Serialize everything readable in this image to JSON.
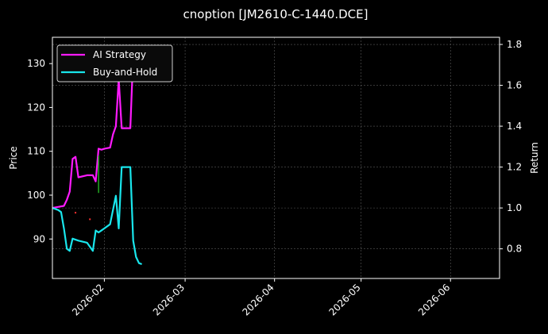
{
  "chart_data": {
    "type": "line",
    "title": "cnoption [JM2610-C-1440.DCE]",
    "x_axis": {
      "type": "date",
      "ticks": [
        "2026-02",
        "2026-03",
        "2026-04",
        "2026-05",
        "2026-06"
      ],
      "tick_dates": [
        "2026-02-01",
        "2026-03-01",
        "2026-04-01",
        "2026-05-01",
        "2026-06-01"
      ],
      "range": [
        "2026-01-14",
        "2026-06-18"
      ]
    },
    "y_left": {
      "label": "Price",
      "ticks": [
        90,
        100,
        110,
        120,
        130
      ],
      "range": [
        81.0,
        136.0
      ]
    },
    "y_right": {
      "label": "Return",
      "ticks": [
        0.8,
        1.0,
        1.2,
        1.4,
        1.6,
        1.8
      ],
      "range": [
        0.655,
        1.835
      ]
    },
    "grid": true,
    "legend": {
      "placement": "upper-left",
      "entries": [
        "AI Strategy",
        "Buy-and-Hold"
      ]
    },
    "series": [
      {
        "name": "AI Strategy",
        "axis": "right",
        "color": "#ff1aff",
        "points": [
          [
            "2026-01-14",
            1.0
          ],
          [
            "2026-01-16",
            1.005
          ],
          [
            "2026-01-18",
            1.01
          ],
          [
            "2026-01-19",
            1.04
          ],
          [
            "2026-01-20",
            1.08
          ],
          [
            "2026-01-21",
            1.24
          ],
          [
            "2026-01-22",
            1.25
          ],
          [
            "2026-01-23",
            1.15
          ],
          [
            "2026-01-26",
            1.16
          ],
          [
            "2026-01-28",
            1.16
          ],
          [
            "2026-01-29",
            1.13
          ],
          [
            "2026-01-30",
            1.29
          ],
          [
            "2026-01-31",
            1.285
          ],
          [
            "2026-02-01",
            1.29
          ],
          [
            "2026-02-03",
            1.295
          ],
          [
            "2026-02-04",
            1.36
          ],
          [
            "2026-02-05",
            1.4
          ],
          [
            "2026-02-06",
            1.63
          ],
          [
            "2026-02-07",
            1.39
          ],
          [
            "2026-02-09",
            1.39
          ],
          [
            "2026-02-10",
            1.39
          ],
          [
            "2026-02-11",
            1.75
          ],
          [
            "2026-02-12",
            1.78
          ]
        ]
      },
      {
        "name": "Buy-and-Hold",
        "axis": "right",
        "color": "#19e6ec",
        "points": [
          [
            "2026-01-14",
            1.0
          ],
          [
            "2026-01-16",
            0.99
          ],
          [
            "2026-01-17",
            0.98
          ],
          [
            "2026-01-18",
            0.9
          ],
          [
            "2026-01-19",
            0.8
          ],
          [
            "2026-01-20",
            0.79
          ],
          [
            "2026-01-21",
            0.85
          ],
          [
            "2026-01-23",
            0.84
          ],
          [
            "2026-01-26",
            0.83
          ],
          [
            "2026-01-28",
            0.79
          ],
          [
            "2026-01-29",
            0.89
          ],
          [
            "2026-01-30",
            0.88
          ],
          [
            "2026-02-01",
            0.9
          ],
          [
            "2026-02-03",
            0.92
          ],
          [
            "2026-02-05",
            1.06
          ],
          [
            "2026-02-06",
            0.9
          ],
          [
            "2026-02-07",
            1.2
          ],
          [
            "2026-02-10",
            1.2
          ],
          [
            "2026-02-11",
            0.84
          ],
          [
            "2026-02-12",
            0.76
          ],
          [
            "2026-02-13",
            0.73
          ],
          [
            "2026-02-14",
            0.725
          ]
        ]
      }
    ],
    "buy_marker": {
      "date": "2026-01-30",
      "y_top": 109,
      "y_bottom": 100.5,
      "color": "#22aa22"
    },
    "tiny_marks": [
      {
        "date": "2026-01-22",
        "price": 96,
        "color": "#ff3030"
      },
      {
        "date": "2026-01-27",
        "price": 94.5,
        "color": "#ff3030"
      }
    ]
  }
}
